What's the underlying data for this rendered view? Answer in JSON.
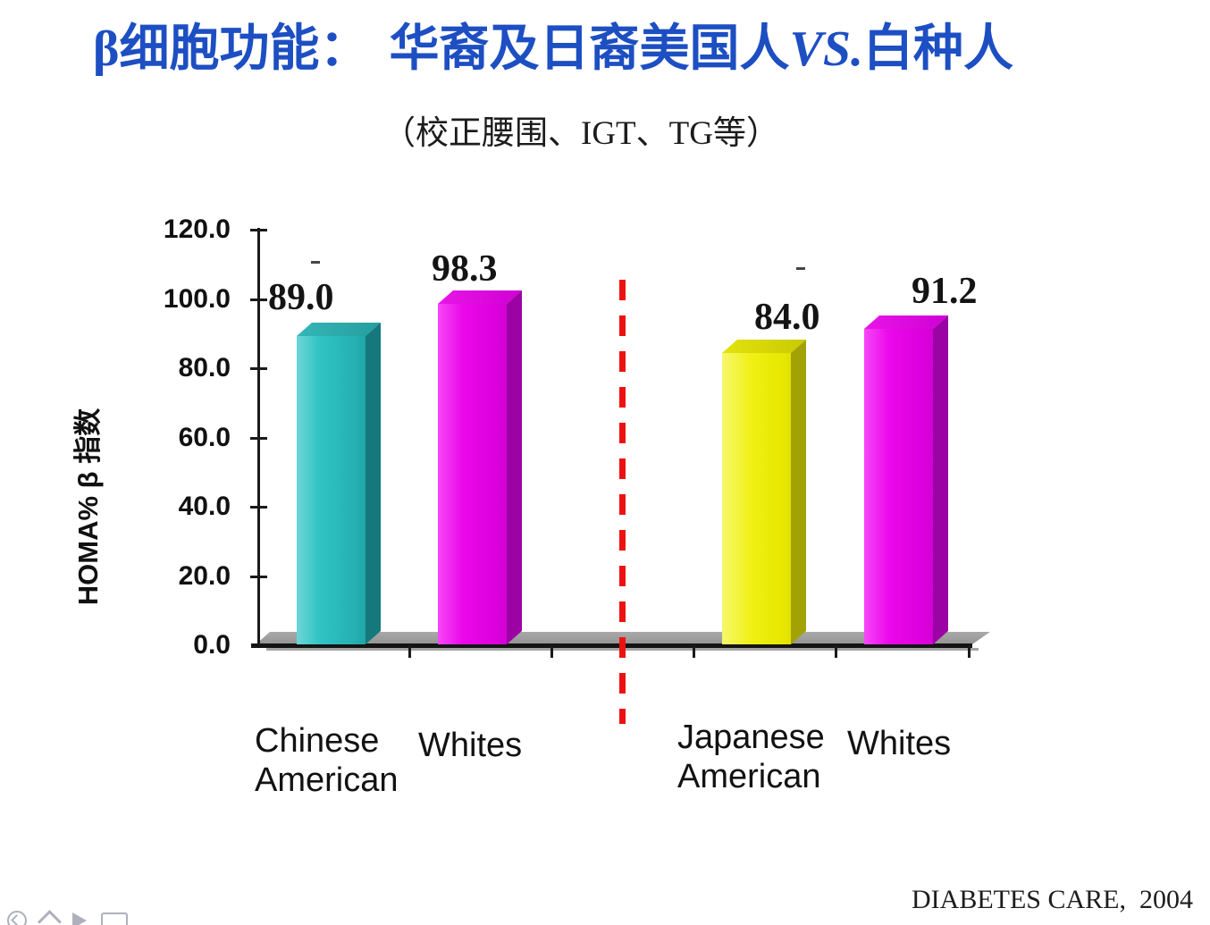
{
  "slide": {
    "title": {
      "prefix": "β细胞功能：",
      "main": "华裔及日裔美国人",
      "vs": "VS.",
      "suffix": "白种人"
    },
    "subtitle": "（校正腰围、IGT、TG等）",
    "citation": "DIABETES CARE,  2004",
    "colors": {
      "title_blue": "#1d4fc3",
      "separator_red": "#ee1111"
    }
  },
  "chart_data": {
    "type": "bar",
    "title": "β细胞功能：华裔及日裔美国人 VS. 白种人（校正腰围、IGT、TG等）",
    "ylabel": "HOMA% β 指数",
    "xlabel": "",
    "ylim": [
      0,
      120
    ],
    "ytick_step": 20,
    "ytick_labels": [
      "120.0",
      "100.0",
      "80.0",
      "60.0",
      "40.0",
      "20.0",
      "0.0"
    ],
    "categories": [
      "Chinese American",
      "Whites",
      "Japanese American",
      "Whites"
    ],
    "category_lines": [
      [
        "Chinese",
        "American"
      ],
      [
        "Whites"
      ],
      [
        "Japanese",
        "American"
      ],
      [
        "Whites"
      ]
    ],
    "values": [
      89.0,
      98.3,
      84.0,
      91.2
    ],
    "data_labels": [
      "89.0",
      "98.3",
      "84.0",
      "91.2"
    ],
    "slugs": [
      "bar-chinese-american",
      "bar-whites-1",
      "bar-japanese-american",
      "bar-whites-2"
    ],
    "bar_styles": [
      {
        "front": "linear-gradient(90deg,#6cd6d6 0%,#2fc3c3 28%,#25b0b2 70%,#1b9396 100%)",
        "side": "#15787c",
        "top": "linear-gradient(90deg,#35b5b7,#249ea0)"
      },
      {
        "front": "linear-gradient(90deg,#f747f7 0%,#ea08ea 30%,#dc00dc 70%,#c102c4 100%)",
        "side": "#9c03a4",
        "top": "linear-gradient(90deg,#e716e7,#d000d4)"
      },
      {
        "front": "linear-gradient(90deg,#f7f76e 0%,#f0f014 35%,#e6e600 75%,#cfcf02 100%)",
        "side": "#a2a206",
        "top": "linear-gradient(90deg,#e3e30e,#c9c903)"
      },
      {
        "front": "linear-gradient(90deg,#f747f7 0%,#ea08ea 30%,#dc00dc 70%,#c102c4 100%)",
        "side": "#9c03a4",
        "top": "linear-gradient(90deg,#e716e7,#d000d4)"
      }
    ],
    "separator": {
      "type": "red-dashed-vertical-line",
      "color": "#ee1111",
      "between_groups": [
        "Whites",
        "Japanese American"
      ]
    },
    "significance_dashes_above": [
      "Chinese American",
      "Japanese American"
    ],
    "grid": false,
    "legend": null
  },
  "presenter_toolbar": {
    "icons": [
      "pen-icon",
      "chevron-up-icon",
      "arrow-forward-icon",
      "slide-rect-icon"
    ]
  }
}
